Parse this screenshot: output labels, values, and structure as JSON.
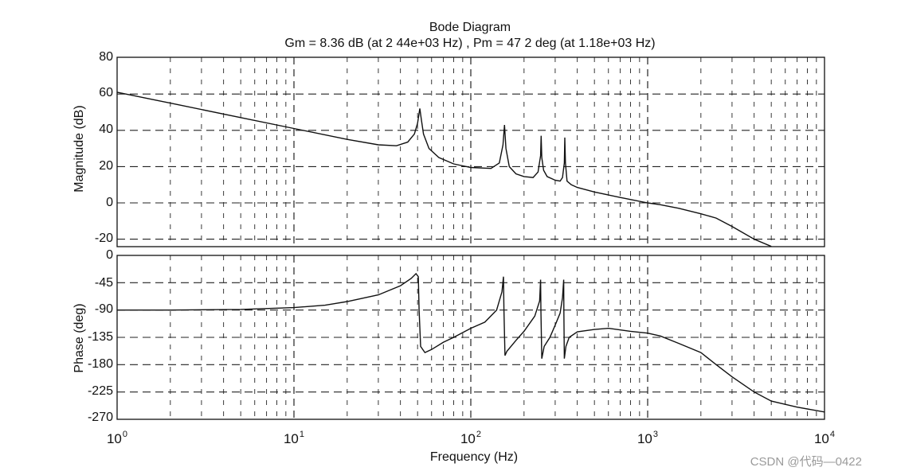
{
  "title": "Bode Diagram",
  "subtitle": "Gm = 8.36 dB (at 2 44e+03 Hz) ,  Pm = 47 2 deg (at 1.18e+03 Hz)",
  "watermark": "CSDN @代码—0422",
  "chart_data": [
    {
      "type": "line",
      "title": "Bode Diagram — Magnitude",
      "xlabel": "Frequency  (Hz)",
      "ylabel": "Magnitude (dB)",
      "xscale": "log",
      "xlim": [
        1,
        10000
      ],
      "ylim": [
        -24,
        80
      ],
      "yticks": [
        80,
        60,
        40,
        20,
        0,
        -20
      ],
      "xticks": [
        "10^0",
        "10^1",
        "10^2",
        "10^3",
        "10^4"
      ],
      "grid": true,
      "grid_style": "dashed",
      "series": [
        {
          "name": "Magnitude",
          "x": [
            1,
            2,
            5,
            10,
            20,
            30,
            38,
            44,
            48,
            50,
            51.5,
            52.5,
            54,
            58,
            66,
            80,
            100,
            130,
            145,
            152,
            155,
            158,
            165,
            180,
            200,
            225,
            240,
            248,
            250,
            252,
            258,
            270,
            300,
            320,
            330,
            338,
            340,
            343,
            350,
            370,
            400,
            500,
            700,
            1000,
            1180,
            1500,
            2000,
            2440,
            3000,
            4000,
            5000
          ],
          "values": [
            61,
            55,
            47,
            41,
            35,
            32,
            31.5,
            33.5,
            38,
            44,
            52,
            46,
            38,
            30,
            25,
            21.5,
            19.5,
            19,
            22,
            32,
            43,
            30,
            20,
            16,
            14.5,
            14,
            17,
            26,
            37,
            25,
            18,
            14.5,
            12.5,
            12,
            14,
            22,
            36,
            22,
            12,
            10,
            8.5,
            6,
            3,
            0,
            -1,
            -3,
            -6,
            -8.36,
            -13,
            -20,
            -24
          ]
        }
      ]
    },
    {
      "type": "line",
      "title": "Bode Diagram — Phase",
      "xlabel": "Frequency  (Hz)",
      "ylabel": "Phase (deg)",
      "xscale": "log",
      "xlim": [
        1,
        10000
      ],
      "ylim": [
        -270,
        0
      ],
      "yticks": [
        0,
        -45,
        -90,
        -135,
        -180,
        -225,
        -270
      ],
      "xticks": [
        "10^0",
        "10^1",
        "10^2",
        "10^3",
        "10^4"
      ],
      "grid": true,
      "grid_style": "dashed",
      "series": [
        {
          "name": "Phase",
          "x": [
            1,
            2,
            5,
            10,
            15,
            20,
            30,
            40,
            46,
            49,
            50.5,
            51,
            52,
            55,
            60,
            70,
            80,
            100,
            120,
            140,
            150,
            153,
            154,
            156,
            160,
            180,
            200,
            230,
            245,
            248,
            249,
            252,
            260,
            280,
            300,
            320,
            330,
            335,
            336,
            338,
            345,
            360,
            400,
            500,
            600,
            800,
            1000,
            1180,
            1500,
            2000,
            2440,
            3000,
            4000,
            5000,
            7000,
            10000
          ],
          "values": [
            -90,
            -90,
            -89,
            -86,
            -82,
            -76,
            -65,
            -50,
            -38,
            -30,
            -35,
            -90,
            -150,
            -160,
            -155,
            -143,
            -135,
            -120,
            -110,
            -90,
            -60,
            -35,
            -90,
            -165,
            -158,
            -140,
            -125,
            -100,
            -75,
            -40,
            -90,
            -170,
            -150,
            -135,
            -115,
            -95,
            -70,
            -40,
            -90,
            -170,
            -150,
            -135,
            -126,
            -122,
            -120,
            -125,
            -128,
            -132.8,
            -145,
            -160,
            -180,
            -200,
            -225,
            -240,
            -250,
            -258
          ]
        }
      ]
    }
  ],
  "axes": {
    "mag_ticks": [
      "80",
      "60",
      "40",
      "20",
      "0",
      "-20"
    ],
    "phase_ticks": [
      "0",
      "-45",
      "-90",
      "-135",
      "-180",
      "-225",
      "-270"
    ],
    "x_ticks": [
      {
        "base": "10",
        "exp": "0"
      },
      {
        "base": "10",
        "exp": "1"
      },
      {
        "base": "10",
        "exp": "2"
      },
      {
        "base": "10",
        "exp": "3"
      },
      {
        "base": "10",
        "exp": "4"
      }
    ],
    "mag_label": "Magnitude (dB)",
    "phase_label": "Phase (deg)",
    "x_label": "Frequency  (Hz)"
  },
  "style": {
    "line_color": "#111111",
    "grid_color": "#222222",
    "frame_color": "#111111",
    "watermark_color": "#9a9a9a"
  }
}
